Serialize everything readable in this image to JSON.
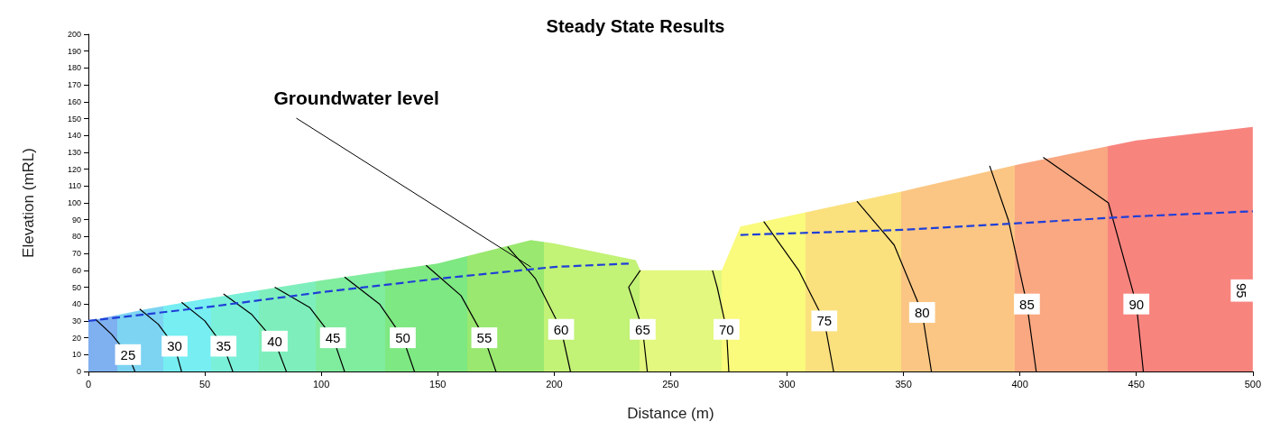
{
  "chart_data": {
    "type": "line",
    "title": "Steady State Results",
    "xlabel": "Distance (m)",
    "ylabel": "Elevation (mRL)",
    "xlim": [
      0,
      500
    ],
    "xticks": [
      0,
      50,
      100,
      150,
      200,
      250,
      300,
      350,
      400,
      450,
      500
    ],
    "ylim": [
      0,
      200
    ],
    "yticks": [
      0,
      10,
      20,
      30,
      40,
      50,
      60,
      70,
      80,
      90,
      100,
      110,
      120,
      130,
      140,
      150,
      160,
      170,
      180,
      190,
      200
    ],
    "grid": false,
    "legend": false,
    "marker": "none",
    "annotations": [
      {
        "text": "Groundwater level",
        "x": 190,
        "y": 62
      },
      "95"
    ],
    "colors": [
      "#7fb0f0",
      "#7cd4f2",
      "#76eef2",
      "#7af0d8",
      "#7eefbc",
      "#80ec9e",
      "#7ee882",
      "#9ae870",
      "#c2f276",
      "#e2f87e",
      "#fafa7c",
      "#fbe07e",
      "#fbc684",
      "#f9a882",
      "#f8847e"
    ],
    "series": [
      {
        "type": "area",
        "x": [
          0,
          25,
          50,
          100,
          150,
          190,
          200,
          235,
          237,
          272,
          280,
          300,
          350,
          400,
          450,
          500
        ],
        "values": [
          30,
          37,
          43,
          54,
          64,
          78,
          76,
          66,
          60,
          60,
          86,
          92,
          107,
          123,
          137,
          145
        ]
      },
      {
        "name": "25",
        "color": "#000000",
        "x": [
          20,
          17,
          10,
          3
        ],
        "values": [
          0,
          10,
          22,
          31
        ]
      },
      {
        "name": "30",
        "color": "#000000",
        "x": [
          40,
          37,
          30,
          22
        ],
        "values": [
          0,
          15,
          28,
          37
        ]
      },
      {
        "name": "35",
        "color": "#000000",
        "x": [
          62,
          58,
          50,
          40
        ],
        "values": [
          0,
          15,
          30,
          41
        ]
      },
      {
        "name": "40",
        "color": "#000000",
        "x": [
          85,
          80,
          70,
          58
        ],
        "values": [
          0,
          18,
          34,
          46
        ]
      },
      {
        "name": "45",
        "color": "#000000",
        "x": [
          110,
          105,
          95,
          80
        ],
        "values": [
          0,
          20,
          38,
          50
        ]
      },
      {
        "name": "50",
        "color": "#000000",
        "x": [
          140,
          135,
          125,
          110
        ],
        "values": [
          0,
          20,
          40,
          56
        ]
      },
      {
        "name": "55",
        "color": "#000000",
        "x": [
          175,
          170,
          160,
          145
        ],
        "values": [
          0,
          20,
          45,
          63
        ]
      },
      {
        "name": "60",
        "color": "#000000",
        "x": [
          207,
          203,
          192,
          180
        ],
        "values": [
          0,
          25,
          55,
          74
        ]
      },
      {
        "name": "65",
        "color": "#000000",
        "x": [
          240,
          238,
          232,
          237
        ],
        "values": [
          0,
          25,
          50,
          60
        ]
      },
      {
        "name": "70",
        "color": "#000000",
        "x": [
          275,
          274,
          270,
          268
        ],
        "values": [
          0,
          25,
          50,
          60
        ]
      },
      {
        "name": "75",
        "color": "#000000",
        "x": [
          320,
          316,
          305,
          290
        ],
        "values": [
          0,
          30,
          60,
          89
        ]
      },
      {
        "name": "80",
        "color": "#000000",
        "x": [
          362,
          358,
          346,
          330
        ],
        "values": [
          0,
          35,
          75,
          101
        ]
      },
      {
        "name": "85",
        "color": "#000000",
        "x": [
          407,
          403,
          395,
          387
        ],
        "values": [
          0,
          40,
          90,
          122
        ]
      },
      {
        "name": "90",
        "color": "#000000",
        "x": [
          453,
          450,
          438,
          410
        ],
        "values": [
          0,
          40,
          100,
          127
        ]
      },
      {
        "color": "#1f3fd8",
        "line_style": "dashed",
        "x": [
          0,
          50,
          100,
          150,
          200,
          232,
          256,
          280,
          350,
          400,
          450,
          500
        ],
        "values": [
          30,
          38,
          47,
          55,
          62,
          64,
          null,
          81,
          84,
          88,
          92,
          95
        ]
      }
    ]
  }
}
